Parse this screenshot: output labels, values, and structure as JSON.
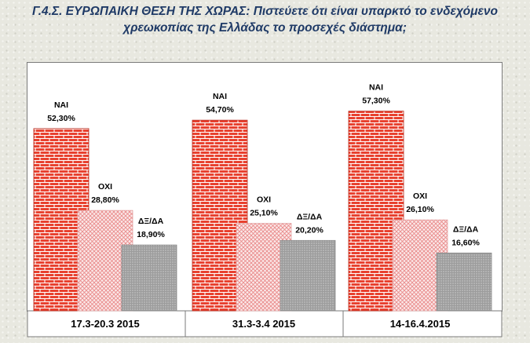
{
  "title": {
    "line1": "Γ.4.Σ. ΕΥΡΩΠΑΙΚΗ ΘΕΣΗ ΤΗΣ ΧΩΡΑΣ: Πιστεύετε ότι είναι υπαρκτό το ενδεχόμενο",
    "line2": "χρεωκοπίας της Ελλάδας το προσεχές διάστημα;"
  },
  "chart_data": {
    "type": "bar",
    "categories": [
      "17.3-20.3 2015",
      "31.3-3.4  2015",
      "14-16.4.2015"
    ],
    "series": [
      {
        "name": "ΝΑΙ",
        "values": [
          52.3,
          54.7,
          57.3
        ],
        "labels": [
          "52,30%",
          "54,70%",
          "57,30%"
        ],
        "color": "#e8412f"
      },
      {
        "name": "ΟΧΙ",
        "values": [
          28.8,
          25.1,
          26.1
        ],
        "labels": [
          "28,80%",
          "25,10%",
          "26,10%"
        ],
        "color": "#f4a6a6"
      },
      {
        "name": "ΔΞ/ΔΑ",
        "values": [
          18.9,
          20.2,
          16.6
        ],
        "labels": [
          "18,90%",
          "20,20%",
          "16,60%"
        ],
        "color": "#a8a8a8"
      }
    ],
    "ylim": [
      0,
      80
    ],
    "grid": false,
    "legend": "none"
  }
}
